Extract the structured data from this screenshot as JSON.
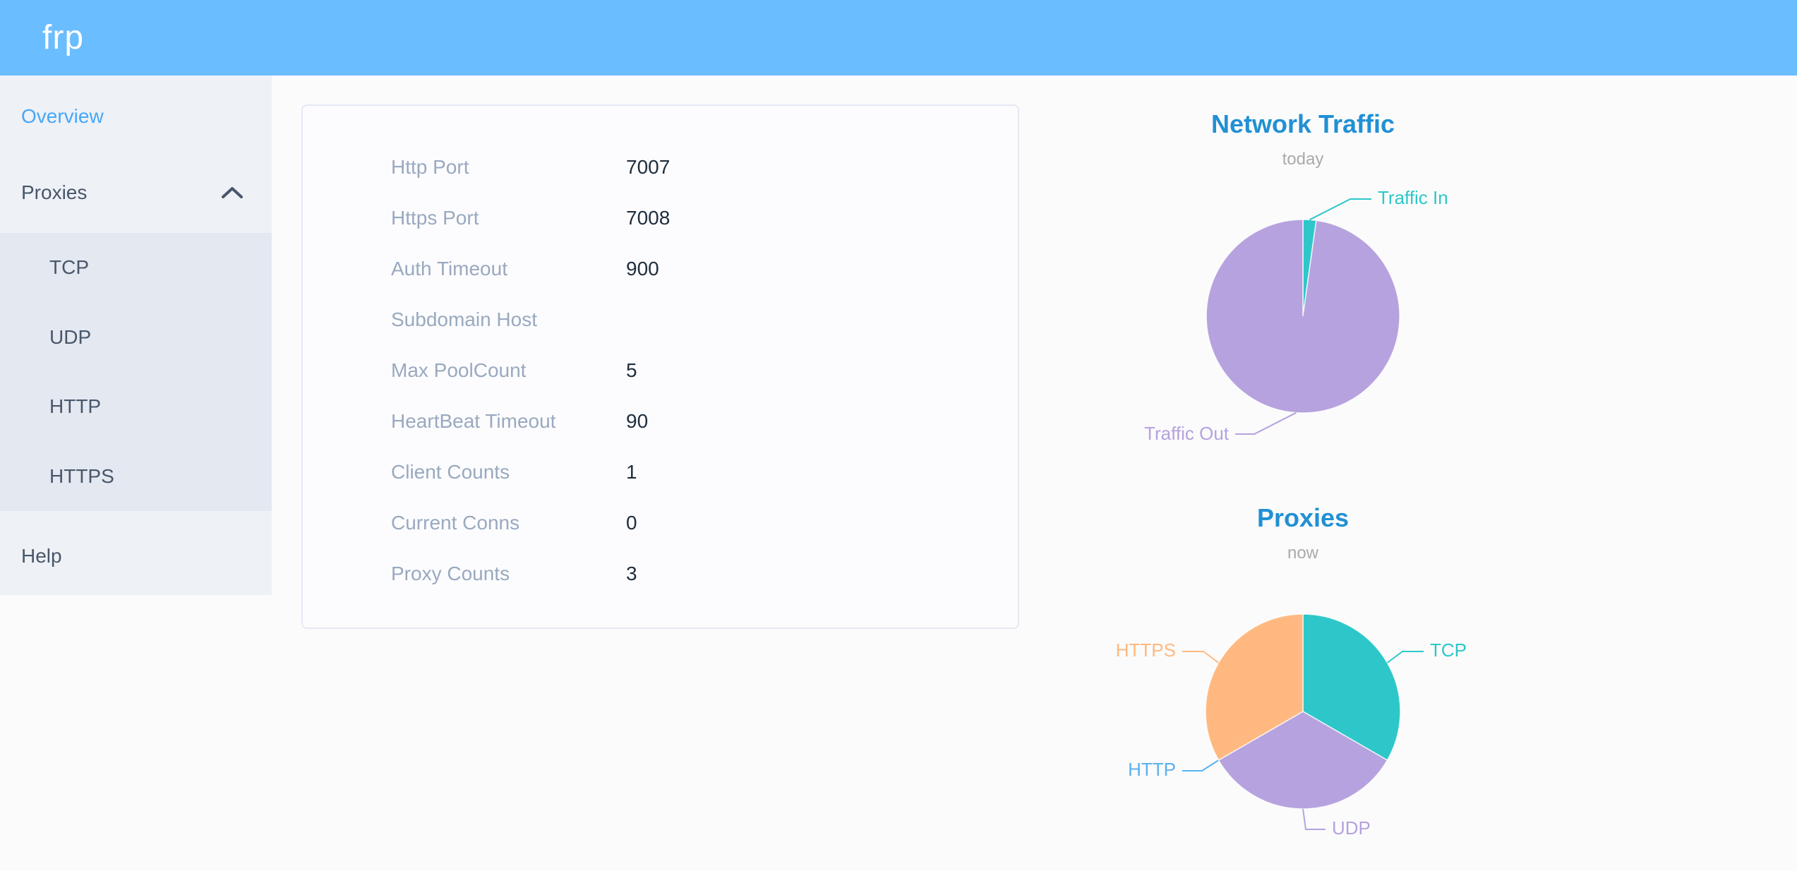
{
  "app": {
    "logo": "frp"
  },
  "theme": {
    "header_bg": "#6abdff",
    "sidebar_bg": "#eef1f6",
    "submenu_bg": "#e4e8f1",
    "sidebar_text": "#48576a",
    "active_item_color": "#46a7f8",
    "label_color": "#99a9bf",
    "value_color": "#1f2d3d",
    "chart_title_color": "#2190d4",
    "chart_subtitle_color": "#aaaaaa"
  },
  "sidebar": {
    "items": [
      {
        "label": "Overview",
        "active": true
      },
      {
        "label": "Proxies",
        "expanded": true,
        "children": [
          "TCP",
          "UDP",
          "HTTP",
          "HTTPS"
        ]
      },
      {
        "label": "Help"
      }
    ]
  },
  "overview": {
    "rows": [
      {
        "label": "Http Port",
        "value": "7007"
      },
      {
        "label": "Https Port",
        "value": "7008"
      },
      {
        "label": "Auth Timeout",
        "value": "900"
      },
      {
        "label": "Subdomain Host",
        "value": ""
      },
      {
        "label": "Max PoolCount",
        "value": "5"
      },
      {
        "label": "HeartBeat Timeout",
        "value": "90"
      },
      {
        "label": "Client Counts",
        "value": "1"
      },
      {
        "label": "Current Conns",
        "value": "0"
      },
      {
        "label": "Proxy Counts",
        "value": "3"
      }
    ]
  },
  "chart_data": [
    {
      "type": "pie",
      "title": "Network Traffic",
      "subtitle": "today",
      "legend_position": "callout-labels",
      "series": [
        {
          "name": "Traffic In",
          "value": 2.2,
          "color": "#2ec7c9"
        },
        {
          "name": "Traffic Out",
          "value": 97.8,
          "color": "#b6a2de"
        }
      ],
      "value_unit": "percent (estimated from slice angles)"
    },
    {
      "type": "pie",
      "title": "Proxies",
      "subtitle": "now",
      "legend_position": "callout-labels",
      "series": [
        {
          "name": "TCP",
          "value": 1,
          "color": "#2ec7c9"
        },
        {
          "name": "UDP",
          "value": 1,
          "color": "#b6a2de"
        },
        {
          "name": "HTTP",
          "value": 0,
          "color": "#5ab1ef"
        },
        {
          "name": "HTTPS",
          "value": 1,
          "color": "#ffb980"
        }
      ],
      "value_unit": "proxy count"
    }
  ]
}
